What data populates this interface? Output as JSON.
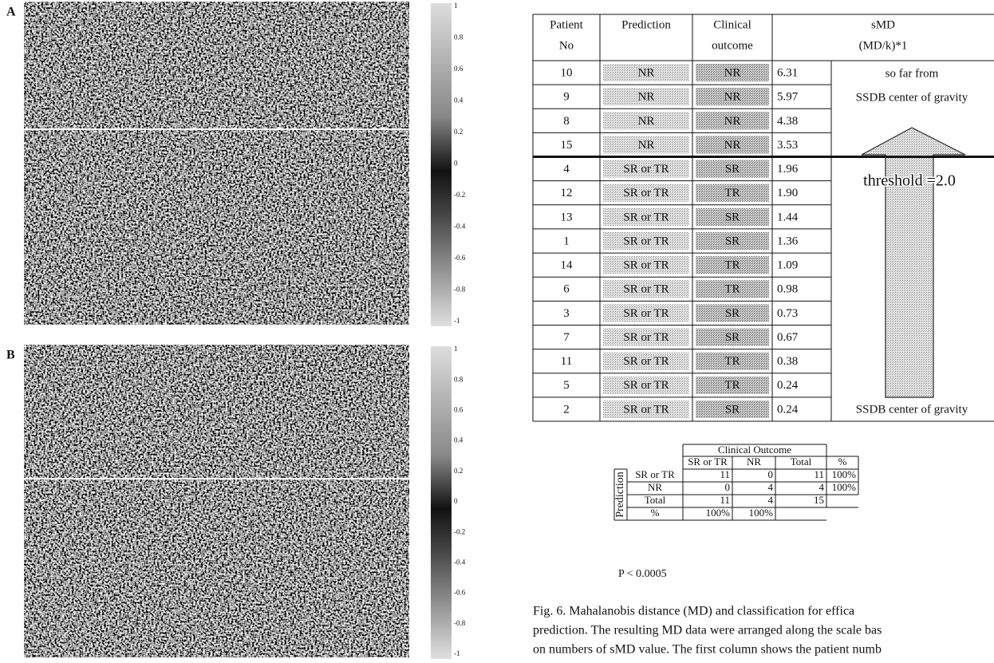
{
  "panels": [
    {
      "label": "A",
      "colorbar_labels": [
        "1",
        "0.8",
        "0.6",
        "0.4",
        "0.2",
        "0",
        "-0.2",
        "-0.4",
        "-0.6",
        "-0.8",
        "-1"
      ]
    },
    {
      "label": "B",
      "colorbar_labels": [
        "1",
        "0.8",
        "0.6",
        "0.4",
        "0.2",
        "0",
        "-0.2",
        "-0.4",
        "-0.6",
        "-0.8",
        "-1"
      ]
    }
  ],
  "table": {
    "headers": [
      [
        "Patient",
        "No"
      ],
      [
        "Prediction"
      ],
      [
        "Clinical",
        "outcome"
      ],
      [
        "sMD",
        "(MD/k)*1"
      ]
    ],
    "rows": [
      [
        "10",
        "NR",
        "NR",
        "6.31"
      ],
      [
        "9",
        "NR",
        "NR",
        "5.97"
      ],
      [
        "8",
        "NR",
        "NR",
        "4.38"
      ],
      [
        "15",
        "NR",
        "NR",
        "3.53"
      ],
      [
        "4",
        "SR or TR",
        "SR",
        "1.96"
      ],
      [
        "12",
        "SR or TR",
        "TR",
        "1.90"
      ],
      [
        "13",
        "SR or TR",
        "SR",
        "1.44"
      ],
      [
        "1",
        "SR or TR",
        "SR",
        "1.36"
      ],
      [
        "14",
        "SR or TR",
        "TR",
        "1.09"
      ],
      [
        "6",
        "SR or TR",
        "TR",
        "0.98"
      ],
      [
        "3",
        "SR or TR",
        "SR",
        "0.73"
      ],
      [
        "7",
        "SR or TR",
        "SR",
        "0.67"
      ],
      [
        "11",
        "SR or TR",
        "TR",
        "0.38"
      ],
      [
        "5",
        "SR or TR",
        "TR",
        "0.24"
      ],
      [
        "2",
        "SR or TR",
        "SR",
        "0.24"
      ]
    ],
    "note_top": [
      "so far from",
      "SSDB center of gravity"
    ],
    "threshold": "threshold =2.0",
    "note_bottom": "SSDB center of gravity"
  },
  "summary": {
    "column_group": "Clinical Outcome",
    "row_group": "Prediction",
    "columns": [
      "SR or TR",
      "NR",
      "Total",
      "%"
    ],
    "rows": [
      [
        "SR or TR",
        "11",
        "0",
        "11",
        "100%"
      ],
      [
        "NR",
        "0",
        "4",
        "4",
        "100%"
      ],
      [
        "Total",
        "11",
        "4",
        "15",
        ""
      ],
      [
        "%",
        "100%",
        "100%",
        "",
        ""
      ]
    ]
  },
  "p_value": "P < 0.0005",
  "caption": [
    "Fig. 6. Mahalanobis distance (MD) and classification for effica",
    "prediction. The resulting MD data were arranged along the scale bas",
    "on numbers of sMD value. The first column shows the patient numb"
  ]
}
